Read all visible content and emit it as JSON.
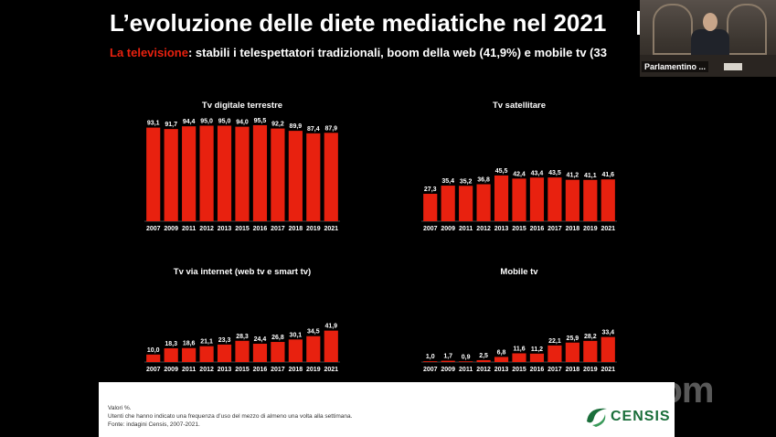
{
  "slide": {
    "title": "L’evoluzione delle diete mediatiche nel 2021",
    "subtitle_highlight": "La televisione",
    "subtitle_rest": ": stabili i telespettatori tradizionali, boom della web (41,9%) e mobile tv (33",
    "bar_color": "#e8210f"
  },
  "chart_data": [
    {
      "type": "bar",
      "title": "Tv digitale terrestre",
      "categories": [
        "2007",
        "2009",
        "2011",
        "2012",
        "2013",
        "2015",
        "2016",
        "2017",
        "2018",
        "2019",
        "2021"
      ],
      "values": [
        93.1,
        91.7,
        94.4,
        95.0,
        95.0,
        94.0,
        95.5,
        92.2,
        89.9,
        87.4,
        87.9
      ],
      "labels": [
        "93,1",
        "91,7",
        "94,4",
        "95,0",
        "95,0",
        "94,0",
        "95,5",
        "92,2",
        "89,9",
        "87,4",
        "87,9"
      ],
      "ylim": [
        0,
        100
      ]
    },
    {
      "type": "bar",
      "title": "Tv satellitare",
      "categories": [
        "2007",
        "2009",
        "2011",
        "2012",
        "2013",
        "2015",
        "2016",
        "2017",
        "2018",
        "2019",
        "2021"
      ],
      "values": [
        27.3,
        35.4,
        35.2,
        36.8,
        45.5,
        42.4,
        43.4,
        43.5,
        41.2,
        41.1,
        41.6
      ],
      "labels": [
        "27,3",
        "35,4",
        "35,2",
        "36,8",
        "45,5",
        "42,4",
        "43,4",
        "43,5",
        "41,2",
        "41,1",
        "41,6"
      ],
      "ylim": [
        0,
        100
      ]
    },
    {
      "type": "bar",
      "title": "Tv via internet (web tv e smart tv)",
      "categories": [
        "2007",
        "2009",
        "2011",
        "2012",
        "2013",
        "2015",
        "2016",
        "2017",
        "2018",
        "2019",
        "2021"
      ],
      "values": [
        10.0,
        18.3,
        18.6,
        21.1,
        23.3,
        28.3,
        24.4,
        26.8,
        30.1,
        34.5,
        41.9
      ],
      "labels": [
        "10,0",
        "18,3",
        "18,6",
        "21,1",
        "23,3",
        "28,3",
        "24,4",
        "26,8",
        "30,1",
        "34,5",
        "41,9"
      ],
      "ylim": [
        0,
        100
      ]
    },
    {
      "type": "bar",
      "title": "Mobile tv",
      "categories": [
        "2007",
        "2009",
        "2011",
        "2012",
        "2013",
        "2015",
        "2016",
        "2017",
        "2018",
        "2019",
        "2021"
      ],
      "values": [
        1.0,
        1.7,
        0.9,
        2.5,
        6.8,
        11.6,
        11.2,
        22.1,
        25.9,
        28.2,
        33.4
      ],
      "labels": [
        "1,0",
        "1,7",
        "0,9",
        "2,5",
        "6,8",
        "11,6",
        "11,2",
        "22,1",
        "25,9",
        "28,2",
        "33,4"
      ],
      "ylim": [
        0,
        100
      ]
    }
  ],
  "footer": {
    "note1": "Valori %.",
    "note2": "Utenti che hanno indicato una frequenza d’uso del mezzo di almeno una volta alla settimana.",
    "note3": "Fonte: indagini Censis, 2007-2021.",
    "logo_text": "CENSIS",
    "logo_color": "#1a6e3a"
  },
  "video": {
    "participant_name": "Parlamentino ..."
  },
  "watermark": "zoom"
}
